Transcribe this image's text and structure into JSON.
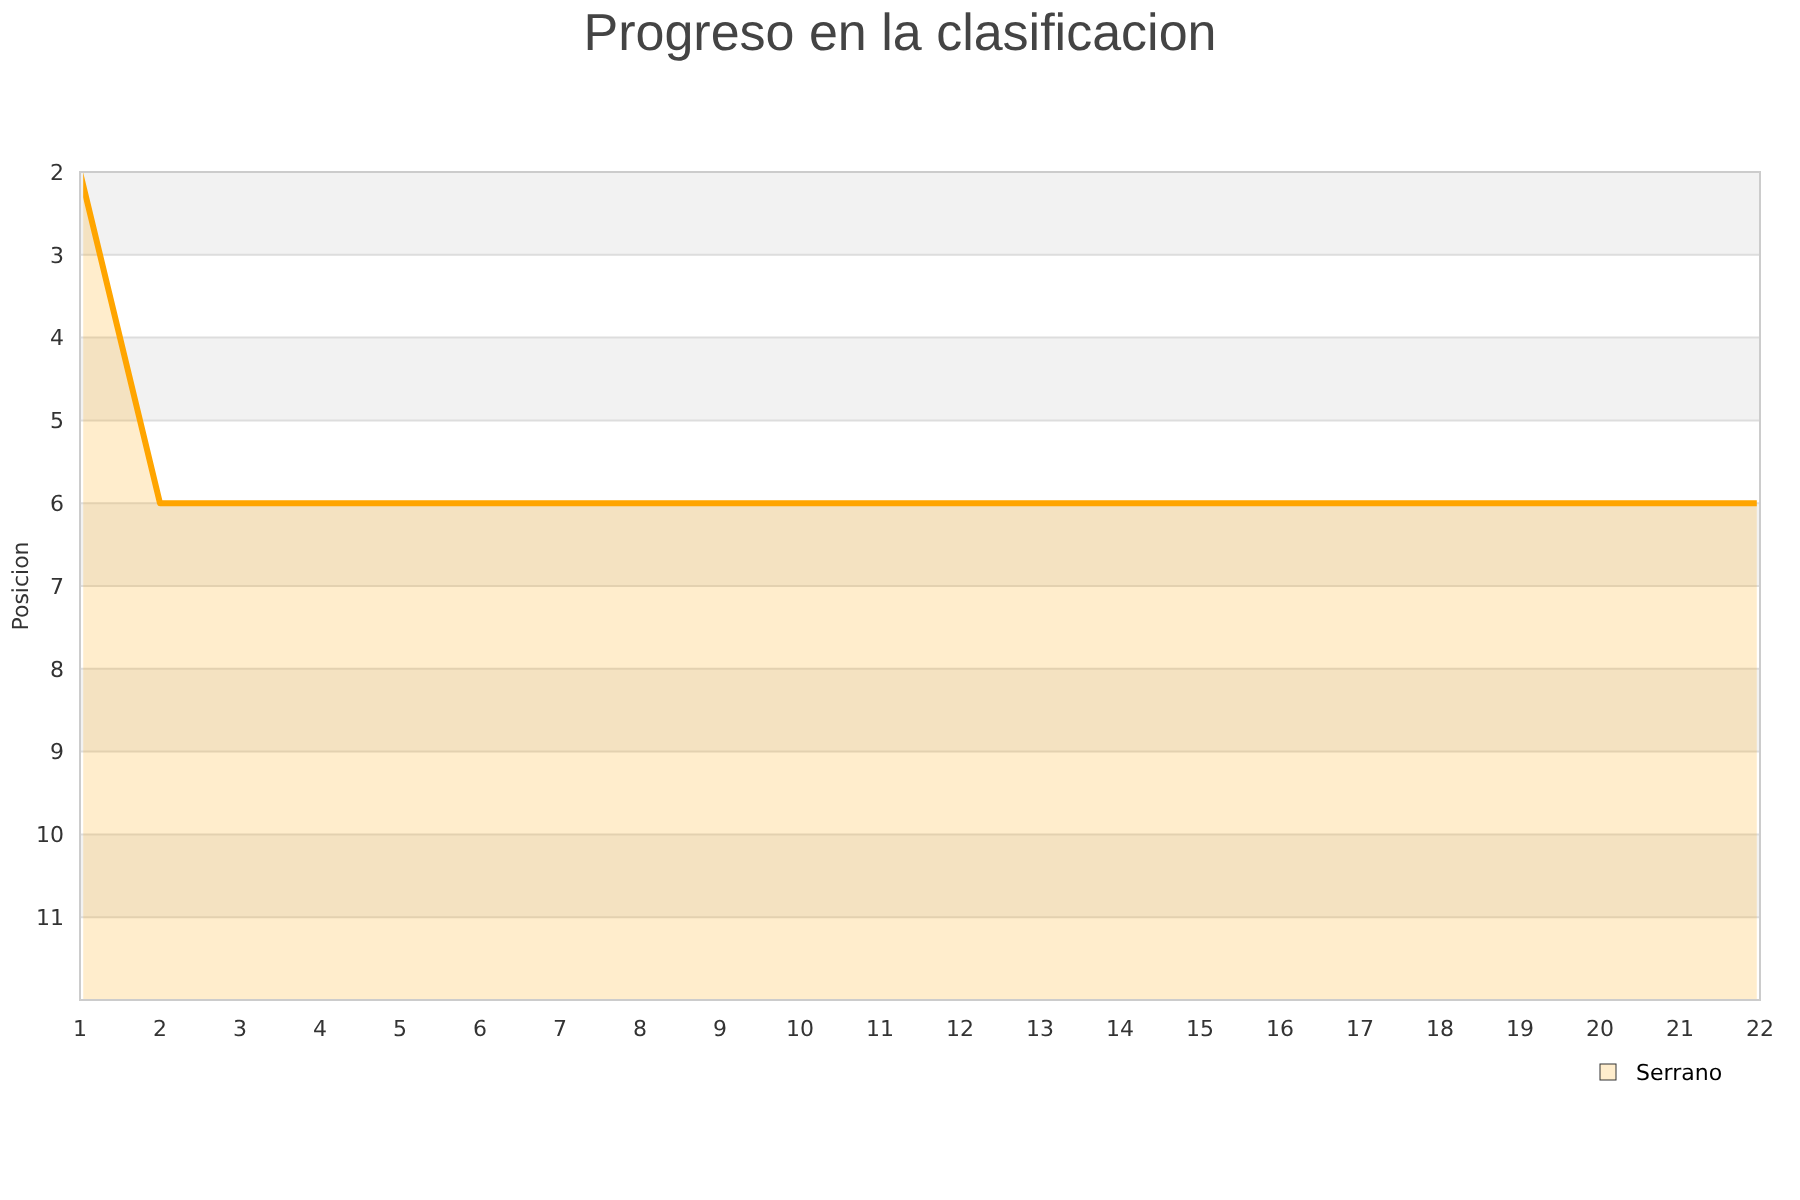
{
  "chart_data": {
    "type": "area",
    "title": "Progreso en la clasificacion",
    "ylabel": "Posicion",
    "x": [
      1,
      2,
      3,
      4,
      5,
      6,
      7,
      8,
      9,
      10,
      11,
      12,
      13,
      14,
      15,
      16,
      17,
      18,
      19,
      20,
      21,
      22
    ],
    "series": [
      {
        "name": "Serrano",
        "color": "#ffa500",
        "values": [
          2,
          6,
          6,
          6,
          6,
          6,
          6,
          6,
          6,
          6,
          6,
          6,
          6,
          6,
          6,
          6,
          6,
          6,
          6,
          6,
          6,
          6
        ]
      }
    ],
    "xlim": [
      1,
      22
    ],
    "xticks": [
      1,
      2,
      3,
      4,
      5,
      6,
      7,
      8,
      9,
      10,
      11,
      12,
      13,
      14,
      15,
      16,
      17,
      18,
      19,
      20,
      21,
      22
    ],
    "ylim": [
      12,
      2
    ],
    "yticks": [
      2,
      3,
      4,
      5,
      6,
      7,
      8,
      9,
      10,
      11
    ],
    "bands": [
      {
        "axis": "y",
        "from": 2,
        "to": 3,
        "color": "#f2f2f2"
      },
      {
        "axis": "y",
        "from": 4,
        "to": 5,
        "color": "#f2f2f2"
      },
      {
        "axis": "y",
        "from": 6,
        "to": 7,
        "color": "#f2f2f2"
      },
      {
        "axis": "y",
        "from": 8,
        "to": 9,
        "color": "#f2f2f2"
      },
      {
        "axis": "y",
        "from": 10,
        "to": 11,
        "color": "#f2f2f2"
      }
    ],
    "grid": "y",
    "legend": "bottom right",
    "marker": "none",
    "line_style": "solid"
  }
}
